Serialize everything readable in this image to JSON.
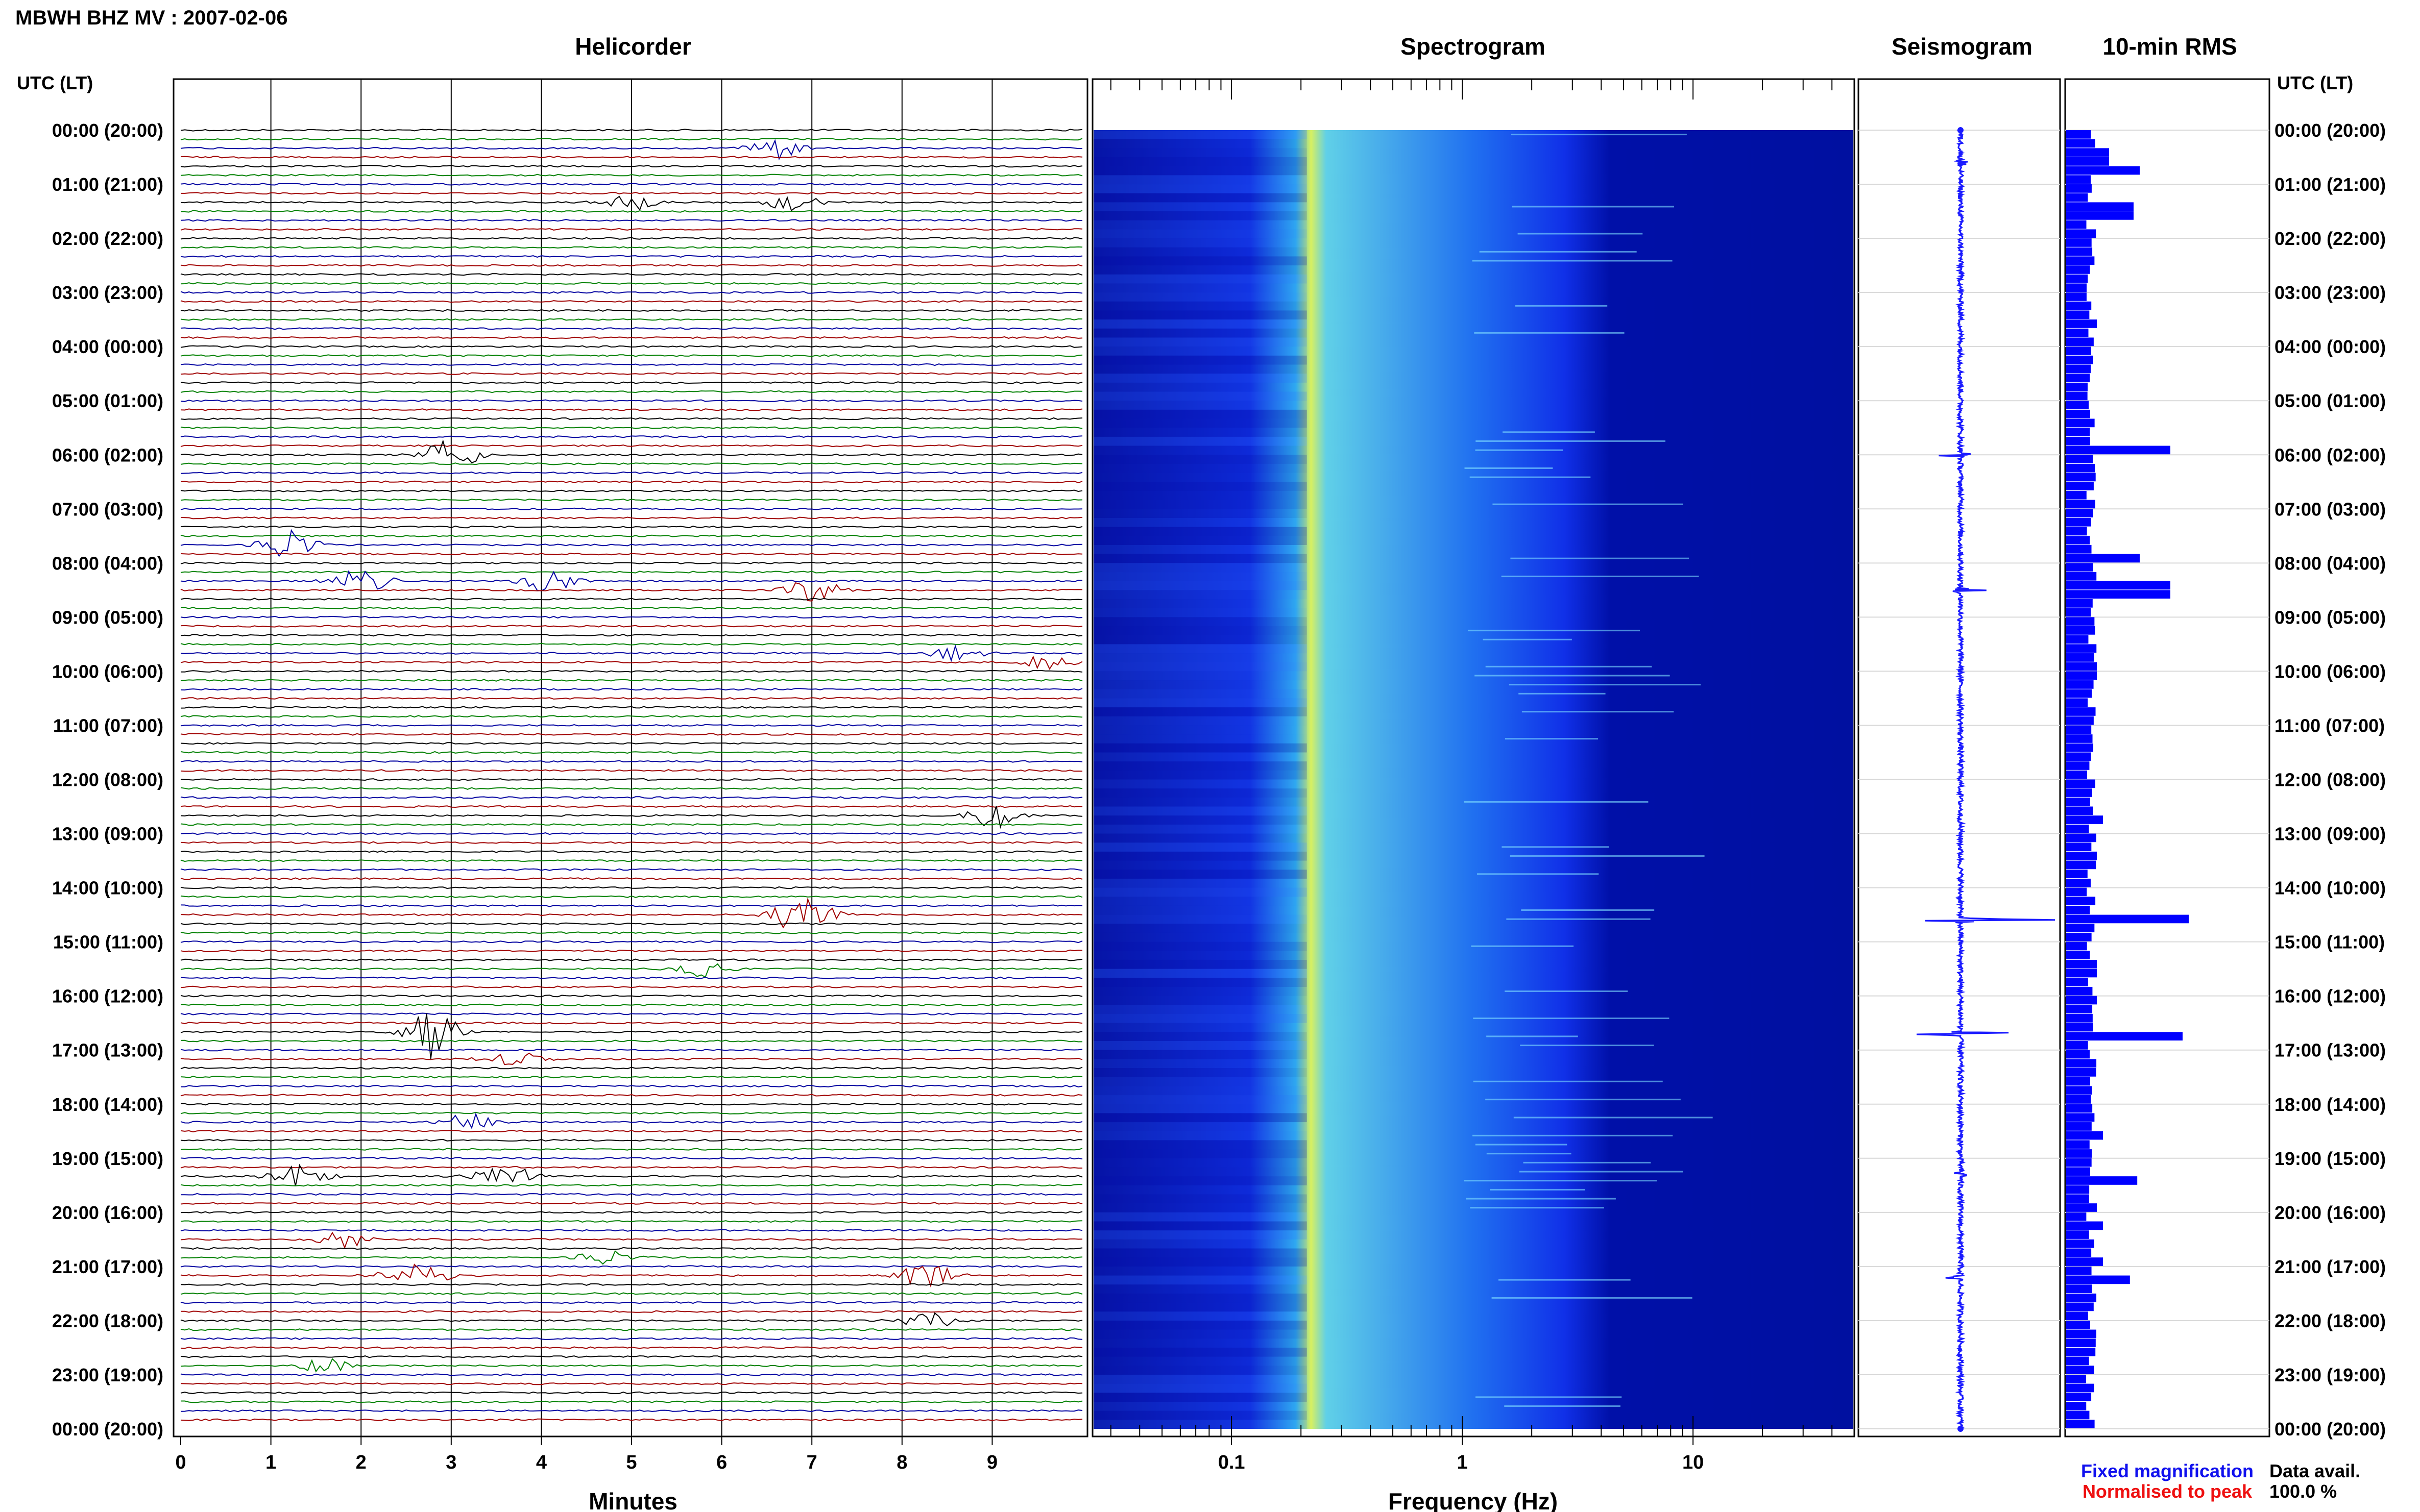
{
  "header": {
    "station": "MBWH BHZ MV : 2007-02-06",
    "utc_label_left": "UTC (LT)",
    "utc_label_right": "UTC (LT)"
  },
  "panels": {
    "helicorder": "Helicorder",
    "spectrogram": "Spectrogram",
    "seismogram": "Seismogram",
    "rms": "10-min RMS"
  },
  "axes": {
    "minutes_label": "Minutes",
    "frequency_label": "Frequency (Hz)",
    "minute_ticks": [
      "0",
      "1",
      "2",
      "3",
      "4",
      "5",
      "6",
      "7",
      "8",
      "9"
    ],
    "frequency_ticks": [
      "0.1",
      "1",
      "10"
    ]
  },
  "time_labels": [
    "00:00 (20:00)",
    "01:00 (21:00)",
    "02:00 (22:00)",
    "03:00 (23:00)",
    "04:00 (00:00)",
    "05:00 (01:00)",
    "06:00 (02:00)",
    "07:00 (03:00)",
    "08:00 (04:00)",
    "09:00 (05:00)",
    "10:00 (06:00)",
    "11:00 (07:00)",
    "12:00 (08:00)",
    "13:00 (09:00)",
    "14:00 (10:00)",
    "15:00 (11:00)",
    "16:00 (12:00)",
    "17:00 (13:00)",
    "18:00 (14:00)",
    "19:00 (15:00)",
    "20:00 (16:00)",
    "21:00 (17:00)",
    "22:00 (18:00)",
    "23:00 (19:00)",
    "00:00 (20:00)"
  ],
  "legend": {
    "fixed": "Fixed magnification",
    "normalised": "Normalised to peak",
    "fixed_color": "#1010ee",
    "normalised_color": "#ee1010",
    "data_avail_label": "Data avail.",
    "data_avail_value": "100.0 %"
  },
  "colors": {
    "trace_cycle": [
      "#000000",
      "#008000",
      "#0000a0",
      "#a00000"
    ],
    "rms_bar": "#0000ff",
    "spectrogram_low": "#000090",
    "spectrogram_high": "#e0f040"
  },
  "chart_data": [
    {
      "type": "line",
      "title": "Helicorder",
      "xlabel": "Minutes",
      "xlim": [
        0,
        10
      ],
      "rows": 144,
      "row_minutes": 10,
      "events": [
        {
          "hour": 0.4,
          "minute": 6.6,
          "amp": 3
        },
        {
          "hour": 1.4,
          "minute": 5.0,
          "amp": 2
        },
        {
          "hour": 1.4,
          "minute": 6.8,
          "amp": 2
        },
        {
          "hour": 6.0,
          "minute": 3.0,
          "amp": 4
        },
        {
          "hour": 7.6,
          "minute": 1.2,
          "amp": 4
        },
        {
          "hour": 8.3,
          "minute": 2.0,
          "amp": 3
        },
        {
          "hour": 8.3,
          "minute": 4.1,
          "amp": 3
        },
        {
          "hour": 8.5,
          "minute": 7.0,
          "amp": 3
        },
        {
          "hour": 9.7,
          "minute": 8.6,
          "amp": 2
        },
        {
          "hour": 9.8,
          "minute": 9.6,
          "amp": 2
        },
        {
          "hour": 12.7,
          "minute": 9.0,
          "amp": 3
        },
        {
          "hour": 14.5,
          "minute": 6.9,
          "amp": 6
        },
        {
          "hour": 15.5,
          "minute": 5.8,
          "amp": 2
        },
        {
          "hour": 16.6,
          "minute": 2.8,
          "amp": 7
        },
        {
          "hour": 17.2,
          "minute": 3.7,
          "amp": 2
        },
        {
          "hour": 18.4,
          "minute": 3.2,
          "amp": 2
        },
        {
          "hour": 19.3,
          "minute": 1.3,
          "amp": 3
        },
        {
          "hour": 19.3,
          "minute": 3.6,
          "amp": 3
        },
        {
          "hour": 20.5,
          "minute": 1.8,
          "amp": 2
        },
        {
          "hour": 20.8,
          "minute": 4.7,
          "amp": 2
        },
        {
          "hour": 21.2,
          "minute": 2.6,
          "amp": 4
        },
        {
          "hour": 21.2,
          "minute": 8.3,
          "amp": 3
        },
        {
          "hour": 22.0,
          "minute": 8.3,
          "amp": 2
        },
        {
          "hour": 22.9,
          "minute": 1.6,
          "amp": 2
        }
      ]
    },
    {
      "type": "heatmap",
      "title": "Spectrogram",
      "xlabel": "Frequency (Hz)",
      "x_scale": "log",
      "xlim": [
        0.025,
        50
      ],
      "peak_frequency_hz": 0.22,
      "ylim": [
        0,
        24
      ]
    },
    {
      "type": "line",
      "title": "Seismogram",
      "ylim": [
        0,
        24
      ],
      "spikes": [
        {
          "hour": 0.6,
          "amp": 0.15
        },
        {
          "hour": 6.0,
          "amp": 0.2
        },
        {
          "hour": 8.5,
          "amp": 0.15
        },
        {
          "hour": 14.6,
          "amp": 0.55
        },
        {
          "hour": 16.7,
          "amp": 0.6
        },
        {
          "hour": 19.3,
          "amp": 0.15
        },
        {
          "hour": 21.2,
          "amp": 0.15
        }
      ]
    },
    {
      "type": "bar",
      "title": "10-min RMS",
      "ylim": [
        0,
        24
      ],
      "bins": 144,
      "baseline": 0.18,
      "peaks": [
        {
          "hour": 0.5,
          "value": 0.35
        },
        {
          "hour": 0.8,
          "value": 0.6
        },
        {
          "hour": 1.5,
          "value": 0.55
        },
        {
          "hour": 5.9,
          "value": 0.85
        },
        {
          "hour": 7.9,
          "value": 0.6
        },
        {
          "hour": 8.5,
          "value": 0.85
        },
        {
          "hour": 8.6,
          "value": 0.45
        },
        {
          "hour": 14.6,
          "value": 1.0
        },
        {
          "hour": 16.7,
          "value": 0.95
        },
        {
          "hour": 19.4,
          "value": 0.58
        },
        {
          "hour": 20.3,
          "value": 0.3
        },
        {
          "hour": 20.9,
          "value": 0.3
        },
        {
          "hour": 21.2,
          "value": 0.52
        },
        {
          "hour": 18.6,
          "value": 0.3
        },
        {
          "hour": 12.7,
          "value": 0.3
        },
        {
          "hour": 15.5,
          "value": 0.25
        },
        {
          "hour": 10.0,
          "value": 0.25
        }
      ]
    }
  ]
}
